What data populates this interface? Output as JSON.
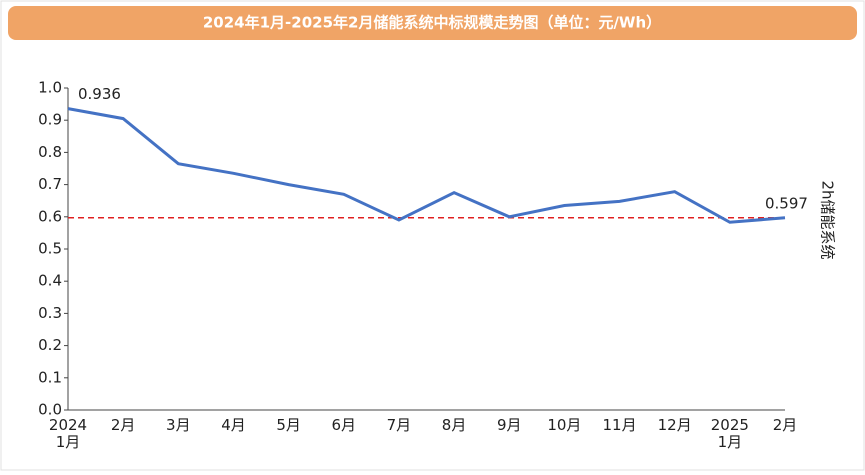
{
  "chart_data": {
    "type": "line",
    "title": "2024年1月-2025年2月储能系统中标规模走势图（单位：元/Wh）",
    "categories": [
      "2024\n1月",
      "2月",
      "3月",
      "4月",
      "5月",
      "6月",
      "7月",
      "8月",
      "9月",
      "10月",
      "11月",
      "12月",
      "2025\n1月",
      "2月"
    ],
    "series": [
      {
        "name": "2h储能系统",
        "color": "#4472c4",
        "values": [
          0.936,
          0.905,
          0.765,
          0.735,
          0.7,
          0.67,
          0.59,
          0.675,
          0.6,
          0.635,
          0.648,
          0.678,
          0.583,
          0.597
        ],
        "value_labels": [
          "0.936",
          null,
          null,
          null,
          null,
          null,
          null,
          null,
          null,
          null,
          null,
          null,
          null,
          "0.597"
        ]
      }
    ],
    "reference_line": {
      "value": 0.597,
      "color": "#e02020"
    },
    "ylim": [
      0,
      1
    ],
    "yticks": [
      {
        "value": 0,
        "label": "0.0"
      },
      0.1,
      0.2,
      0.3,
      0.4,
      0.5,
      0.6,
      0.7,
      0.8,
      0.9,
      {
        "value": 1,
        "label": "1.0"
      }
    ],
    "title_color": "#f0a466"
  }
}
